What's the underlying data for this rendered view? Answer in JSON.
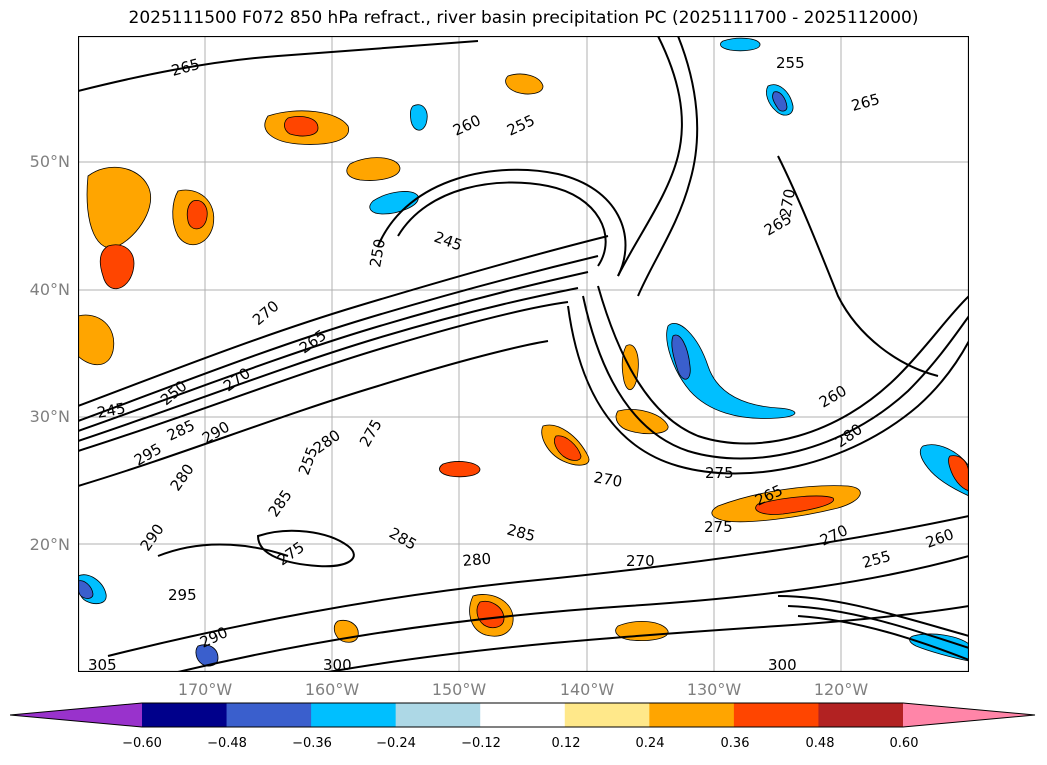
{
  "title": "2025111500 F072 850 hPa refract., river basin precipitation PC (2025111700 - 2025112000)",
  "lat_labels": [
    "50°N",
    "40°N",
    "30°N",
    "20°N"
  ],
  "lon_labels": [
    "170°W",
    "160°W",
    "150°W",
    "140°W",
    "130°W",
    "120°W"
  ],
  "contour_labels": [
    "265",
    "255",
    "260",
    "255",
    "265",
    "250",
    "245",
    "270",
    "265",
    "250",
    "245",
    "270",
    "285",
    "290",
    "280",
    "275",
    "285",
    "290",
    "295",
    "285",
    "280",
    "275",
    "270",
    "275",
    "285",
    "280",
    "270",
    "260",
    "255",
    "265",
    "275",
    "280",
    "270",
    "295",
    "305",
    "300",
    "300",
    "290",
    "260",
    "255",
    "265",
    "270"
  ],
  "colorbar": {
    "ticks": [
      "−0.60",
      "−0.48",
      "−0.36",
      "−0.24",
      "−0.12",
      "0.12",
      "0.24",
      "0.36",
      "0.48",
      "0.60"
    ],
    "colors": [
      "#9932CC",
      "#00008B",
      "#3A5FCD",
      "#00BFFF",
      "#ADD8E6",
      "#FFFFFF",
      "#FFE88A",
      "#FFA500",
      "#FF4500",
      "#B22222",
      "#FF85A8"
    ]
  }
}
